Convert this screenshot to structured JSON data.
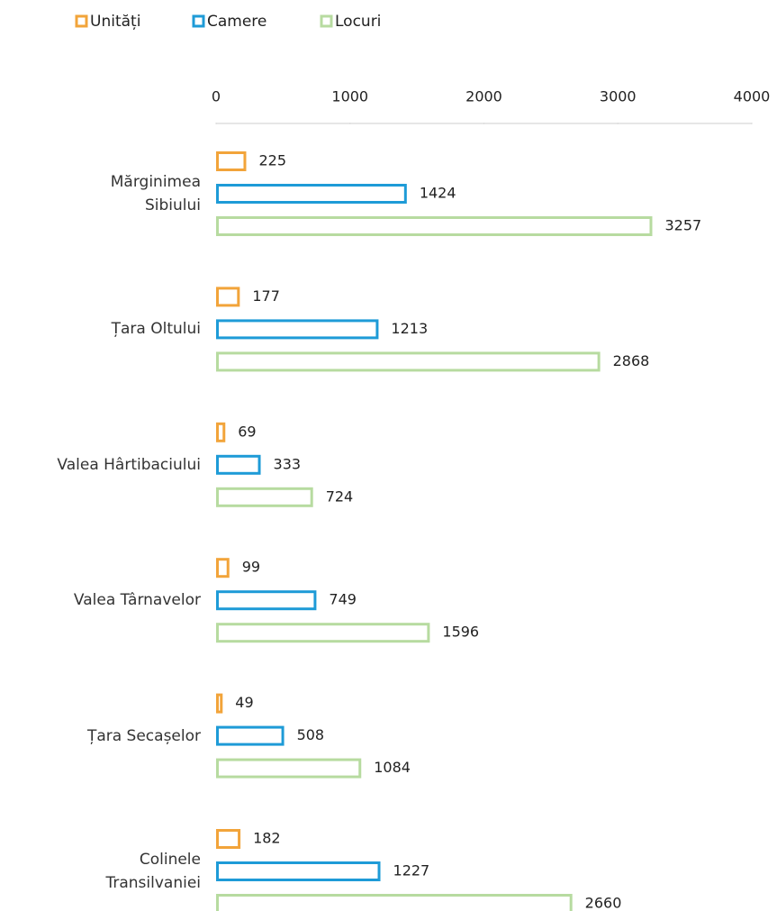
{
  "chart_data": {
    "type": "bar",
    "orientation": "horizontal",
    "categories": [
      "Mărginimea\nSibiului",
      "Țara Oltului",
      "Valea Hârtibaciului",
      "Valea Târnavelor",
      "Țara Secașelor",
      "Colinele\nTransilvaniei"
    ],
    "series": [
      {
        "name": "Unități",
        "color": "#f2a43a",
        "values": [
          225,
          177,
          69,
          99,
          49,
          182
        ]
      },
      {
        "name": "Camere",
        "color": "#1e9bd7",
        "values": [
          1424,
          1213,
          333,
          749,
          508,
          1227
        ]
      },
      {
        "name": "Locuri",
        "color": "#b7dba0",
        "values": [
          3257,
          2868,
          724,
          1596,
          1084,
          2660
        ]
      }
    ],
    "xlim": [
      0,
      4000
    ],
    "xticks": [
      0,
      1000,
      2000,
      3000,
      4000
    ],
    "legend": "top-left"
  }
}
